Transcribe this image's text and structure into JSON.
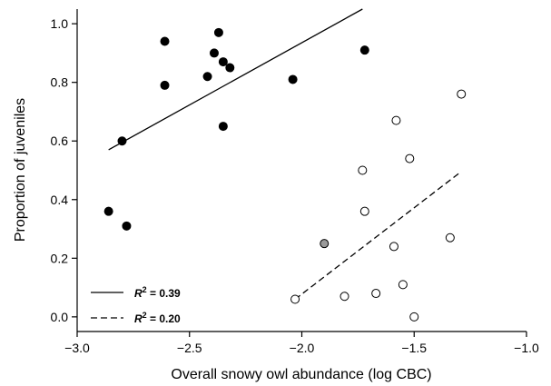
{
  "chart_data": {
    "type": "scatter",
    "xlabel": "Overall snowy owl abundance (log CBC)",
    "ylabel": "Proportion of juveniles",
    "xlim": [
      -3.0,
      -1.0
    ],
    "ylim": [
      -0.05,
      1.05
    ],
    "x_ticks": [
      -3.0,
      -2.5,
      -2.0,
      -1.5,
      -1.0
    ],
    "x_tick_labels": [
      "−3.0",
      "−2.5",
      "−2.0",
      "−1.5",
      "−1.0"
    ],
    "y_ticks": [
      0.0,
      0.2,
      0.4,
      0.6,
      0.8,
      1.0
    ],
    "y_tick_labels": [
      "0.0",
      "0.2",
      "0.4",
      "0.6",
      "0.8",
      "1.0"
    ],
    "grid": false,
    "legend_position": "bottom-left",
    "series": [
      {
        "marker": "filled-circle",
        "color": "#000000",
        "points": [
          {
            "x": -2.86,
            "y": 0.36
          },
          {
            "x": -2.78,
            "y": 0.31
          },
          {
            "x": -2.8,
            "y": 0.6
          },
          {
            "x": -2.61,
            "y": 0.94
          },
          {
            "x": -2.61,
            "y": 0.79
          },
          {
            "x": -2.42,
            "y": 0.82
          },
          {
            "x": -2.39,
            "y": 0.9
          },
          {
            "x": -2.37,
            "y": 0.97
          },
          {
            "x": -2.35,
            "y": 0.87
          },
          {
            "x": -2.32,
            "y": 0.85
          },
          {
            "x": -2.35,
            "y": 0.65
          },
          {
            "x": -2.04,
            "y": 0.81
          },
          {
            "x": -1.72,
            "y": 0.91
          }
        ]
      },
      {
        "marker": "open-circle",
        "color": "#000000",
        "points": [
          {
            "x": -1.29,
            "y": 0.76
          },
          {
            "x": -1.58,
            "y": 0.67
          },
          {
            "x": -1.52,
            "y": 0.54
          },
          {
            "x": -1.73,
            "y": 0.5
          },
          {
            "x": -1.72,
            "y": 0.36
          },
          {
            "x": -1.59,
            "y": 0.24
          },
          {
            "x": -1.34,
            "y": 0.27
          },
          {
            "x": -1.55,
            "y": 0.11
          },
          {
            "x": -1.67,
            "y": 0.08
          },
          {
            "x": -1.81,
            "y": 0.07
          },
          {
            "x": -2.03,
            "y": 0.06
          },
          {
            "x": -1.5,
            "y": 0.0
          }
        ]
      },
      {
        "marker": "gray-circle",
        "color": "#9a9a9a",
        "points": [
          {
            "x": -1.9,
            "y": 0.25
          }
        ]
      }
    ],
    "fits": [
      {
        "style": "solid",
        "x": [
          -2.86,
          -1.73
        ],
        "y": [
          0.57,
          1.05
        ]
      },
      {
        "style": "dashed",
        "x": [
          -2.03,
          -1.3
        ],
        "y": [
          0.06,
          0.49
        ]
      }
    ],
    "legend": [
      {
        "style": "solid",
        "label_prefix": "R",
        "label_sup": "2",
        "label_suffix": " = 0.39"
      },
      {
        "style": "dashed",
        "label_prefix": "R",
        "label_sup": "2",
        "label_suffix": " = 0.20"
      }
    ]
  }
}
